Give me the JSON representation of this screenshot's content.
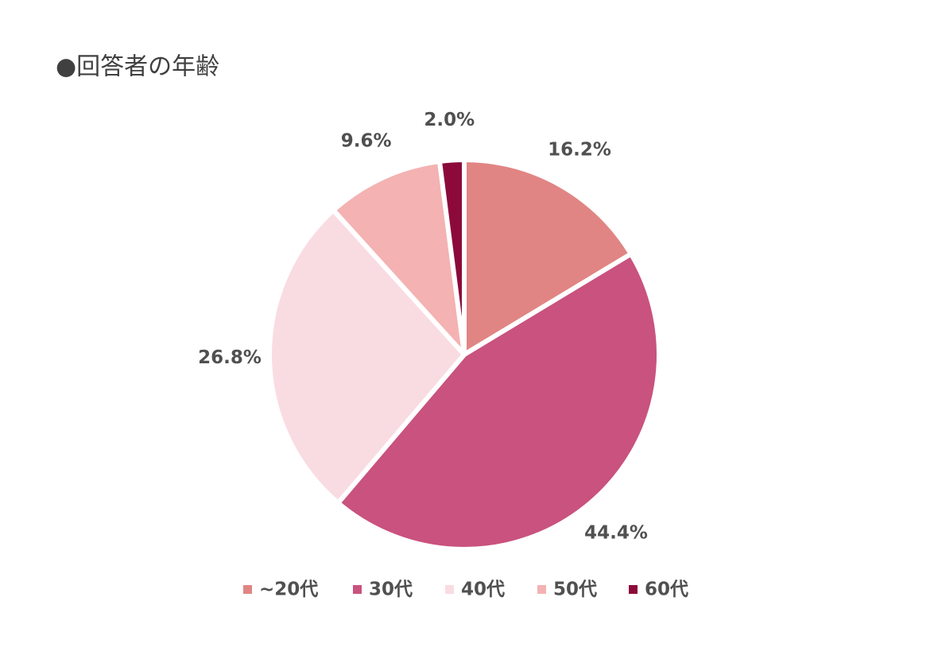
{
  "chart_data": {
    "type": "pie",
    "title": "●回答者の年齢",
    "categories": [
      "~20代",
      "30代",
      "40代",
      "50代",
      "60代"
    ],
    "values": [
      16.2,
      44.4,
      26.8,
      9.6,
      2.0
    ],
    "value_labels": [
      "16.2%",
      "44.4%",
      "26.8%",
      "9.6%",
      "2.0%"
    ],
    "colors": [
      "#e08583",
      "#c9527e",
      "#f9dce2",
      "#f4b2b2",
      "#8c0a3a"
    ],
    "legend": "bottom"
  }
}
